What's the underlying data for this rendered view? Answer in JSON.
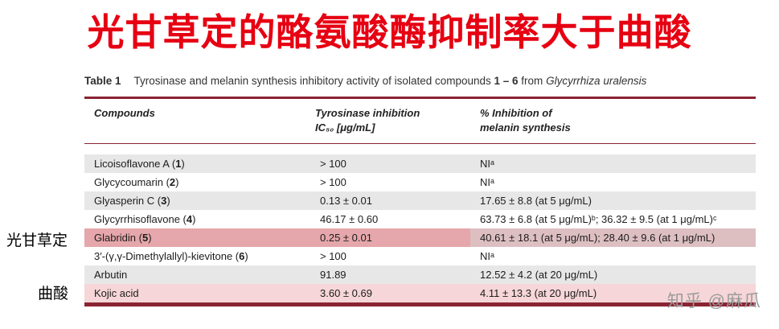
{
  "page": {
    "title": "光甘草定的酪氨酸酶抑制率大于曲酸"
  },
  "colors": {
    "title_red": "#e60012",
    "accent": "#8a2433",
    "row_gray": "#e8e7e7",
    "highlight_strong": "#e5a7ab",
    "highlight_strong_right": "#ddbfc2",
    "highlight_light": "#f6d6d8",
    "watermark_gray": "#9b9b9b"
  },
  "table": {
    "label": "Table 1",
    "caption_text": "Tyrosinase and melanin synthesis inhibitory activity of isolated compounds ",
    "caption_bold": "1 – 6",
    "caption_mid": " from ",
    "caption_species": "Glycyrrhiza uralensis",
    "columns": {
      "c1": "Compounds",
      "c2_line1": "Tyrosinase inhibition",
      "c2_line2": "IC₅₀ [μg/mL]",
      "c3_line1": "% Inhibition of",
      "c3_line2": "melanin synthesis"
    },
    "rows": [
      {
        "name_pre": "Licoisoflavone A (",
        "num": "1",
        "name_post": ")",
        "ic50": "> 100",
        "melanin": "NIᵃ",
        "bg": "#e8e7e7",
        "bg3": "#e8e7e7"
      },
      {
        "name_pre": "Glycycoumarin (",
        "num": "2",
        "name_post": ")",
        "ic50": "> 100",
        "melanin": "NIᵃ",
        "bg": "#ffffff",
        "bg3": "#ffffff"
      },
      {
        "name_pre": "Glyasperin C (",
        "num": "3",
        "name_post": ")",
        "ic50": "0.13 ± 0.01",
        "melanin": "17.65 ± 8.8 (at 5 μg/mL)",
        "bg": "#e8e7e7",
        "bg3": "#e8e7e7"
      },
      {
        "name_pre": "Glycyrrhisoflavone (",
        "num": "4",
        "name_post": ")",
        "ic50": "46.17 ± 0.60",
        "melanin": "63.73 ± 6.8 (at 5 μg/mL)ᵇ; 36.32 ± 9.5 (at 1 μg/mL)ᶜ",
        "bg": "#ffffff",
        "bg3": "#ffffff"
      },
      {
        "name_pre": "Glabridin (",
        "num": "5",
        "name_post": ")",
        "ic50": "0.25 ± 0.01",
        "melanin": "40.61 ± 18.1 (at 5 μg/mL); 28.40 ± 9.6 (at 1 μg/mL)",
        "bg": "#e5a7ab",
        "bg3": "#ddbfc2"
      },
      {
        "name_pre": "3′-(γ,γ-Dimethylallyl)-kievitone (",
        "num": "6",
        "name_post": ")",
        "ic50": "> 100",
        "melanin": "NIᵃ",
        "bg": "#ffffff",
        "bg3": "#ffffff"
      },
      {
        "name_pre": "Arbutin",
        "num": "",
        "name_post": "",
        "ic50": "91.89",
        "melanin": "12.52 ± 4.2 (at 20 μg/mL)",
        "bg": "#e8e7e7",
        "bg3": "#e8e7e7"
      },
      {
        "name_pre": "Kojic acid",
        "num": "",
        "name_post": "",
        "ic50": "3.60 ± 0.69",
        "melanin": "4.11 ± 13.3 (at 20 μg/mL)",
        "bg": "#f6d6d8",
        "bg3": "#f6d6d8"
      }
    ]
  },
  "annotations": {
    "glabridin_label": "光甘草定",
    "kojic_label": "曲酸"
  },
  "watermark": {
    "text": "知乎 @麻瓜"
  }
}
